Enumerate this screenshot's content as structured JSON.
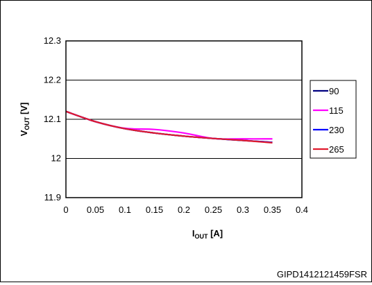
{
  "chart_data": {
    "type": "line",
    "xlabel": {
      "main": "I",
      "sub": "OUT",
      "unit": " [A]"
    },
    "ylabel": {
      "main": "V",
      "sub": "OUT",
      "unit": " [V]"
    },
    "xlim": [
      0,
      0.4
    ],
    "ylim": [
      11.9,
      12.3
    ],
    "x_ticks": [
      "0",
      "0.05",
      "0.1",
      "0.15",
      "0.2",
      "0.25",
      "0.3",
      "0.35",
      "0.4"
    ],
    "y_ticks": [
      "11.9",
      "12",
      "12.1",
      "12.2",
      "12.3"
    ],
    "grid": "horizontal",
    "legend_position": "right",
    "series": [
      {
        "name": "90",
        "color": "#000080",
        "x": [
          0,
          0.05,
          0.1,
          0.15,
          0.2,
          0.25,
          0.3,
          0.35
        ],
        "y": [
          12.12,
          12.094,
          12.076,
          12.065,
          12.057,
          12.051,
          12.046,
          12.041
        ]
      },
      {
        "name": "115",
        "color": "#ff00ff",
        "x": [
          0,
          0.05,
          0.1,
          0.15,
          0.2,
          0.25,
          0.3,
          0.35
        ],
        "y": [
          12.12,
          12.094,
          12.077,
          12.074,
          12.065,
          12.051,
          12.05,
          12.05
        ]
      },
      {
        "name": "230",
        "color": "#0000ff",
        "x": [
          0,
          0.05,
          0.1,
          0.15,
          0.2,
          0.25,
          0.3,
          0.35
        ],
        "y": [
          12.12,
          12.094,
          12.076,
          12.065,
          12.057,
          12.051,
          12.046,
          12.041
        ]
      },
      {
        "name": "265",
        "color": "#e01a2d",
        "x": [
          0,
          0.05,
          0.1,
          0.15,
          0.2,
          0.25,
          0.3,
          0.35
        ],
        "y": [
          12.12,
          12.094,
          12.076,
          12.065,
          12.057,
          12.051,
          12.046,
          12.04
        ]
      }
    ]
  },
  "figure_id": "GIPD1412121459FSR"
}
